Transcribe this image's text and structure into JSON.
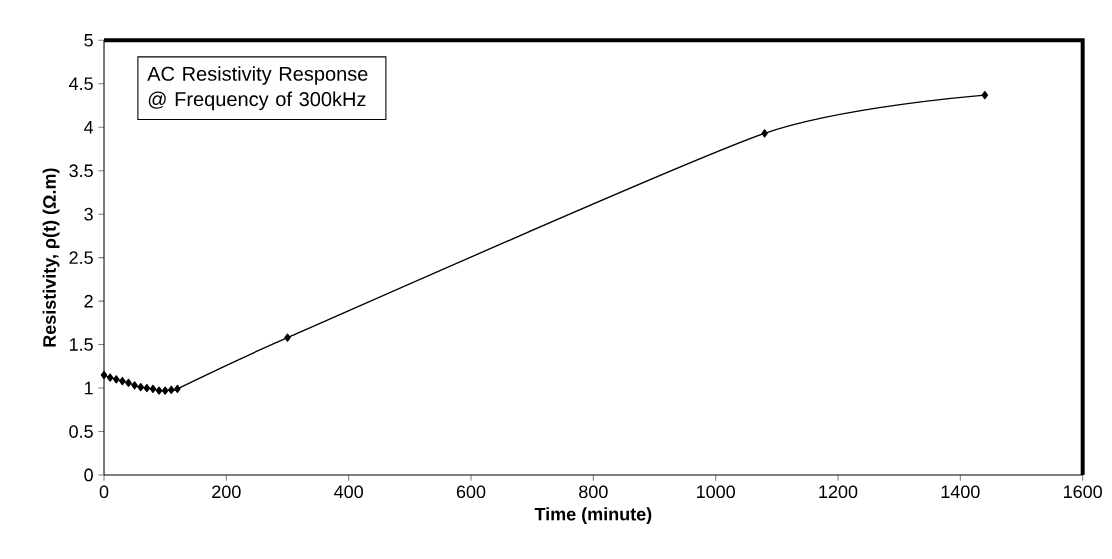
{
  "chart_data": {
    "type": "line",
    "xlabel": "Time (minute)",
    "ylabel": "Resistivity, ρ(t) (Ω.m)",
    "annotations": [
      "AC Resistivity Response\n@ Frequency of 300kHz"
    ],
    "x": [
      0,
      10,
      20,
      30,
      40,
      50,
      60,
      70,
      80,
      90,
      100,
      110,
      120,
      300,
      1080,
      1440
    ],
    "series": [
      {
        "color": "#000000",
        "values": [
          1.15,
          1.12,
          1.1,
          1.08,
          1.06,
          1.03,
          1.01,
          1.0,
          0.99,
          0.97,
          0.97,
          0.98,
          0.99,
          1.58,
          3.93,
          4.37
        ]
      }
    ],
    "xlim": [
      0,
      1600
    ],
    "xticks": [
      0,
      200,
      400,
      600,
      800,
      1000,
      1200,
      1400,
      1600
    ],
    "ylim": [
      0,
      5
    ],
    "yticks": [
      0,
      0.5,
      1,
      1.5,
      2,
      2.5,
      3,
      3.5,
      4,
      4.5,
      5
    ],
    "grid": false,
    "marker": "diamond",
    "line_style": "solid"
  }
}
